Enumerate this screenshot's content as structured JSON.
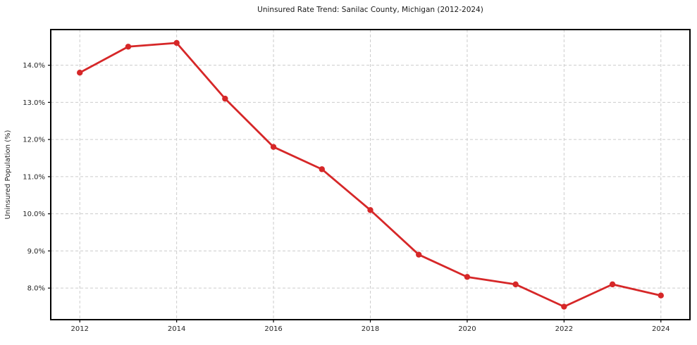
{
  "chart_data": {
    "type": "line",
    "title": "Uninsured Rate Trend: Sanilac County, Michigan (2012-2024)",
    "xlabel": "",
    "ylabel": "Uninsured Population (%)",
    "x": [
      2012,
      2013,
      2014,
      2015,
      2016,
      2017,
      2018,
      2019,
      2020,
      2021,
      2022,
      2023,
      2024
    ],
    "series": [
      {
        "name": "Uninsured Population (%)",
        "values": [
          13.8,
          14.5,
          14.6,
          13.1,
          11.8,
          11.2,
          10.1,
          8.9,
          8.3,
          8.1,
          7.5,
          8.1,
          7.8
        ]
      }
    ],
    "xlim": [
      2011.4,
      2024.6
    ],
    "ylim": [
      7.15,
      14.96
    ],
    "xticks": [
      2012,
      2014,
      2016,
      2018,
      2020,
      2022,
      2024
    ],
    "yticks": [
      8.0,
      9.0,
      10.0,
      11.0,
      12.0,
      13.0,
      14.0
    ],
    "ytick_suffix": "%",
    "ytick_decimals": 1,
    "grid": true,
    "grid_style": "dashed",
    "legend_position": "none",
    "colors": {
      "line": "#d62728",
      "marker": "#d62728",
      "grid": "#cccccc",
      "axis": "#000000",
      "tick_text": "#262626",
      "background": "#ffffff"
    }
  }
}
